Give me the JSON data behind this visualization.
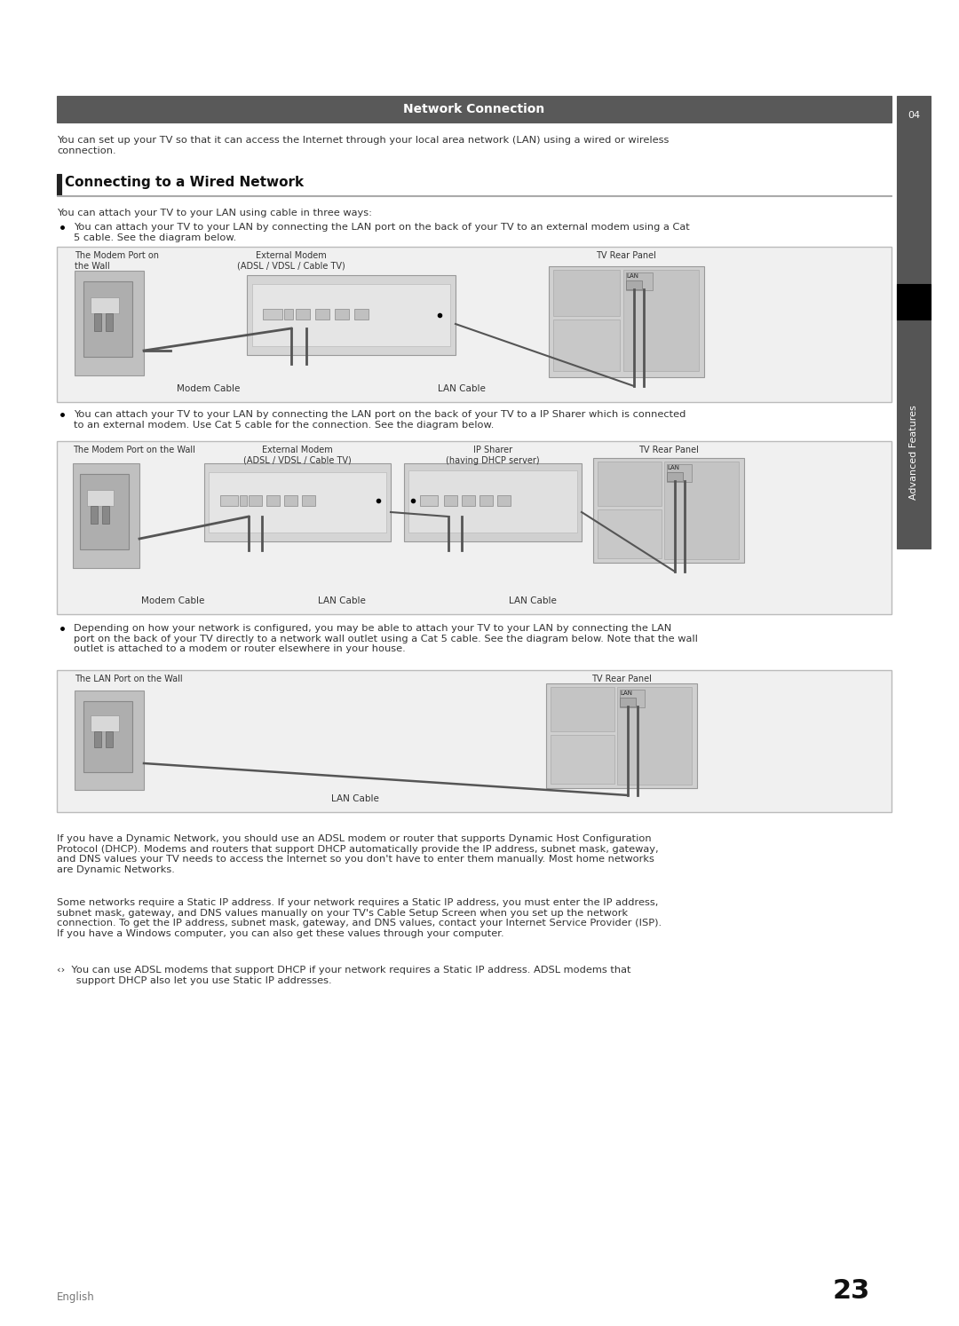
{
  "page_bg": "#ffffff",
  "header_bg": "#595959",
  "header_text": "Network Connection",
  "header_text_color": "#ffffff",
  "sidebar_color": "#555555",
  "sidebar_black": "#000000",
  "sidebar_text": "Advanced Features",
  "sidebar_number": "04",
  "section_title": "Connecting to a Wired Network",
  "section_bar_color": "#222222",
  "intro_text": "You can set up your TV so that it can access the Internet through your local area network (LAN) using a wired or wireless\nconnection.",
  "body_text1": "You can attach your TV to your LAN using cable in three ways:",
  "bullet1": "You can attach your TV to your LAN by connecting the LAN port on the back of your TV to an external modem using a Cat\n5 cable. See the diagram below.",
  "bullet2": "You can attach your TV to your LAN by connecting the LAN port on the back of your TV to a IP Sharer which is connected\nto an external modem. Use Cat 5 cable for the connection. See the diagram below.",
  "bullet3": "Depending on how your network is configured, you may be able to attach your TV to your LAN by connecting the LAN\nport on the back of your TV directly to a network wall outlet using a Cat 5 cable. See the diagram below. Note that the wall\noutlet is attached to a modem or router elsewhere in your house.",
  "footer_text1": "If you have a Dynamic Network, you should use an ADSL modem or router that supports Dynamic Host Configuration\nProtocol (DHCP). Modems and routers that support DHCP automatically provide the IP address, subnet mask, gateway,\nand DNS values your TV needs to access the Internet so you don't have to enter them manually. Most home networks\nare Dynamic Networks.",
  "footer_text2": "Some networks require a Static IP address. If your network requires a Static IP address, you must enter the IP address,\nsubnet mask, gateway, and DNS values manually on your TV's Cable Setup Screen when you set up the network\nconnection. To get the IP address, subnet mask, gateway, and DNS values, contact your Internet Service Provider (ISP).\nIf you have a Windows computer, you can also get these values through your computer.",
  "footer_note": "‹›  You can use ADSL modems that support DHCP if your network requires a Static IP address. ADSL modems that\n      support DHCP also let you use Static IP addresses.",
  "page_number": "23",
  "english_label": "English",
  "diagram1_labels": [
    "The Modem Port on\nthe Wall",
    "External Modem\n(ADSL / VDSL / Cable TV)",
    "TV Rear Panel"
  ],
  "diagram1_cable_labels": [
    "Modem Cable",
    "LAN Cable"
  ],
  "diagram2_labels": [
    "The Modem Port on the Wall",
    "External Modem\n(ADSL / VDSL / Cable TV)",
    "IP Sharer\n(having DHCP server)",
    "TV Rear Panel"
  ],
  "diagram2_cable_labels": [
    "Modem Cable",
    "LAN Cable",
    "LAN Cable"
  ],
  "diagram3_labels": [
    "The LAN Port on the Wall",
    "TV Rear Panel"
  ],
  "diagram3_cable_labels": [
    "LAN Cable"
  ],
  "diagram_bg": "#f0f0f0",
  "diagram_border": "#bbbbbb",
  "line_color": "#444444"
}
